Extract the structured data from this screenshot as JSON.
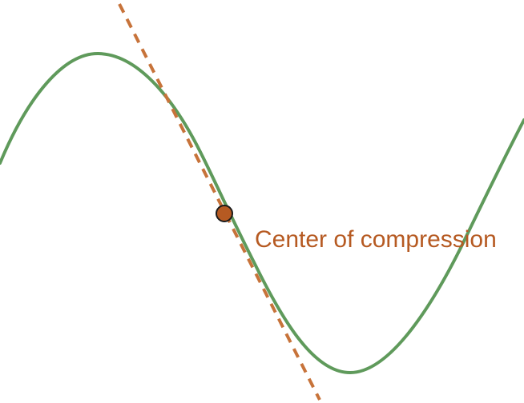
{
  "diagram": {
    "label": "Center of compression",
    "colors": {
      "curve": "#5f9a5b",
      "tangent": "#c7733a",
      "point_fill": "#b65a22",
      "point_stroke": "#1a1a1a",
      "label": "#b65a22",
      "background": "#ffffff"
    }
  }
}
